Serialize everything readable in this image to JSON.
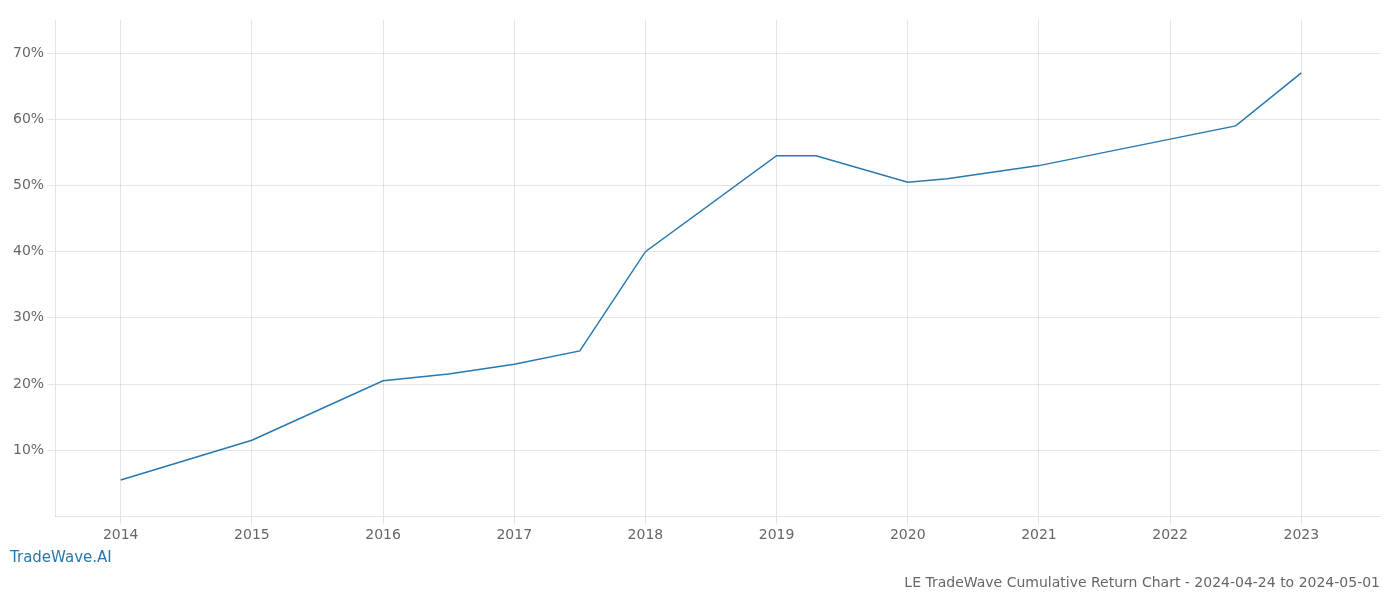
{
  "chart_data": {
    "type": "line",
    "title": "LE TradeWave Cumulative Return Chart - 2024-04-24 to 2024-05-01",
    "annotations": [
      "TradeWave.AI"
    ],
    "x": [
      2014,
      2015,
      2016,
      2016.5,
      2017,
      2017.5,
      2018,
      2019,
      2019.3,
      2020,
      2020.3,
      2021,
      2021.5,
      2022,
      2022.5,
      2023
    ],
    "values": [
      5.5,
      11.5,
      20.5,
      21.5,
      23,
      25,
      40,
      54.5,
      54.5,
      50.5,
      51,
      53,
      55,
      57,
      59,
      67
    ],
    "color": "#2878b0",
    "xlim": [
      2013.5,
      2023.6
    ],
    "xticks": [
      2014,
      2015,
      2016,
      2017,
      2018,
      2019,
      2020,
      2021,
      2022,
      2023
    ],
    "ylim": [
      0,
      75
    ],
    "yticks": [
      {
        "value": 10,
        "label": "10%"
      },
      {
        "value": 20,
        "label": "20%"
      },
      {
        "value": 30,
        "label": "30%"
      },
      {
        "value": 40,
        "label": "40%"
      },
      {
        "value": 50,
        "label": "50%"
      },
      {
        "value": 60,
        "label": "60%"
      },
      {
        "value": 70,
        "label": "70%"
      }
    ],
    "grid": true
  }
}
